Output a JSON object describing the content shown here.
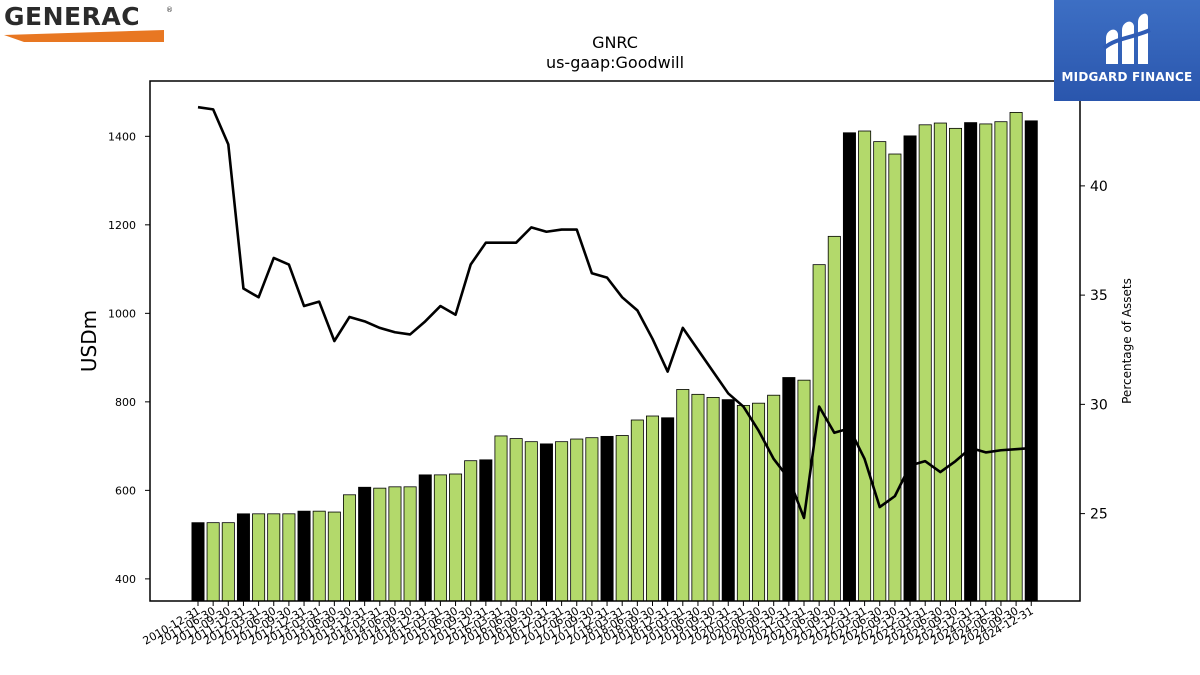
{
  "brand": {
    "left_logo": "GENERAC",
    "right_logo": "MIDGARD FINANCE"
  },
  "chart_data": {
    "type": "bar",
    "title": "GNRC",
    "subtitle": "us-gaap:Goodwill",
    "ylabel": "USDm",
    "y2label": "Percentage of Assets",
    "ylim": [
      350,
      1525
    ],
    "y2lim": [
      21,
      44.8
    ],
    "yticks": [
      400,
      600,
      800,
      1000,
      1200,
      1400
    ],
    "y2ticks": [
      25,
      30,
      35,
      40
    ],
    "categories": [
      "2010-12-31",
      "2011-06-30",
      "2011-09-30",
      "2011-12-31",
      "2012-03-31",
      "2012-06-30",
      "2012-09-30",
      "2012-12-31",
      "2013-03-31",
      "2013-06-30",
      "2013-09-30",
      "2013-12-31",
      "2014-03-31",
      "2014-06-30",
      "2014-09-30",
      "2014-12-31",
      "2015-03-31",
      "2015-06-30",
      "2015-09-30",
      "2015-12-31",
      "2016-03-31",
      "2016-06-30",
      "2016-09-30",
      "2016-12-31",
      "2017-03-31",
      "2017-06-30",
      "2017-09-30",
      "2017-12-31",
      "2018-03-31",
      "2018-06-30",
      "2018-09-30",
      "2018-12-31",
      "2019-03-31",
      "2019-06-30",
      "2019-09-30",
      "2019-12-31",
      "2020-03-31",
      "2020-06-30",
      "2020-09-30",
      "2020-12-31",
      "2021-03-31",
      "2021-06-30",
      "2021-09-30",
      "2021-12-31",
      "2022-03-31",
      "2022-06-30",
      "2022-09-30",
      "2022-12-31",
      "2023-03-31",
      "2023-06-30",
      "2023-09-30",
      "2023-12-31",
      "2024-03-31",
      "2024-06-30",
      "2024-09-30",
      "2024-12-31"
    ],
    "series": [
      {
        "kind": "bar",
        "values": [
          527,
          527,
          527,
          547,
          547,
          547,
          547,
          553,
          553,
          551,
          590,
          607,
          605,
          608,
          608,
          635,
          635,
          637,
          667,
          669,
          723,
          717,
          710,
          705,
          710,
          716,
          719,
          722,
          724,
          759,
          768,
          764,
          828,
          817,
          810,
          805,
          792,
          797,
          815,
          855,
          849,
          1110,
          1174,
          1408,
          1412,
          1388,
          1360,
          1401,
          1426,
          1430,
          1418,
          1431,
          1428,
          1433,
          1454,
          1435
        ],
        "year_end": [
          true,
          false,
          false,
          true,
          false,
          false,
          false,
          true,
          false,
          false,
          false,
          true,
          false,
          false,
          false,
          true,
          false,
          false,
          false,
          true,
          false,
          false,
          false,
          true,
          false,
          false,
          false,
          true,
          false,
          false,
          false,
          true,
          false,
          false,
          false,
          true,
          false,
          false,
          false,
          true,
          false,
          false,
          false,
          true,
          false,
          false,
          false,
          true,
          false,
          false,
          false,
          true,
          false,
          false,
          false,
          true
        ],
        "color_quarter": "#b3d96b",
        "color_year_end": "#000000"
      },
      {
        "kind": "line",
        "axis": "right",
        "color": "#000000",
        "values": [
          43.6,
          43.5,
          41.9,
          35.3,
          34.9,
          36.7,
          36.4,
          34.5,
          34.7,
          32.9,
          34.0,
          33.8,
          33.5,
          33.3,
          33.2,
          33.8,
          34.5,
          34.1,
          36.4,
          37.4,
          37.4,
          37.4,
          38.1,
          37.9,
          38.0,
          38.0,
          36.0,
          35.8,
          34.9,
          34.3,
          33.0,
          31.5,
          33.5,
          32.5,
          31.5,
          30.5,
          29.9,
          28.8,
          27.5,
          26.6,
          24.8,
          29.9,
          28.7,
          28.9,
          27.5,
          25.3,
          25.8,
          27.2,
          27.4,
          26.9,
          27.4,
          28.0,
          27.8,
          27.9,
          27.95,
          28.0
        ]
      }
    ]
  }
}
